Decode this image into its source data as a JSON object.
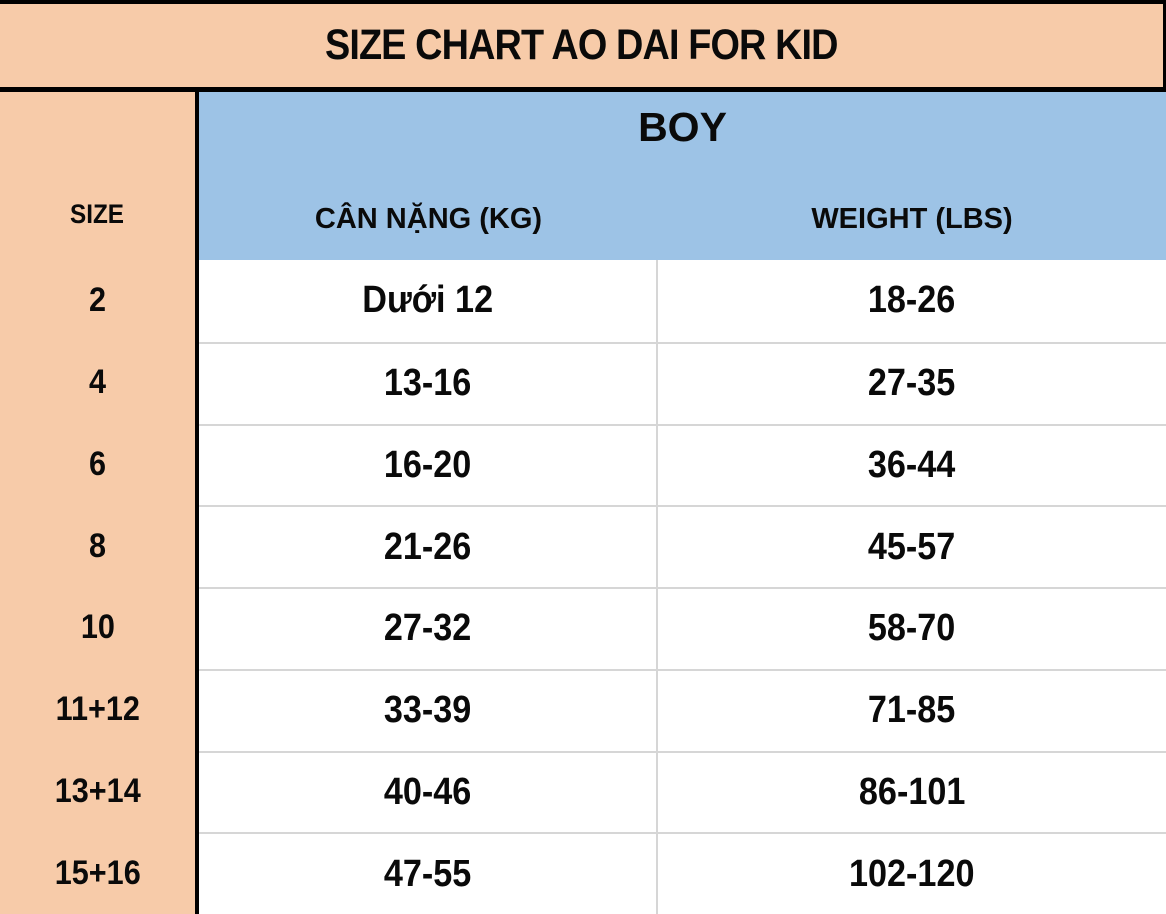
{
  "colors": {
    "peach": "#F7CBA9",
    "blue": "#9DC3E6",
    "divider_gray": "#D6D6D6",
    "border_black": "#000000",
    "text_black": "#0A0A0A",
    "row_white": "#FFFFFF"
  },
  "chart_data": {
    "type": "table",
    "title": "SIZE CHART AO DAI FOR KID",
    "group_header": "BOY",
    "size_header": "SIZE",
    "columns": [
      "CÂN NẶNG (KG)",
      "WEIGHT (LBS)"
    ],
    "rows": [
      {
        "size": "2",
        "kg": "Dưới 12",
        "lbs": "18-26"
      },
      {
        "size": "4",
        "kg": "13-16",
        "lbs": "27-35"
      },
      {
        "size": "6",
        "kg": "16-20",
        "lbs": "36-44"
      },
      {
        "size": "8",
        "kg": "21-26",
        "lbs": "45-57"
      },
      {
        "size": "10",
        "kg": "27-32",
        "lbs": "58-70"
      },
      {
        "size": "11+12",
        "kg": "33-39",
        "lbs": "71-85"
      },
      {
        "size": "13+14",
        "kg": "40-46",
        "lbs": "86-101"
      },
      {
        "size": "15+16",
        "kg": "47-55",
        "lbs": "102-120"
      }
    ]
  }
}
